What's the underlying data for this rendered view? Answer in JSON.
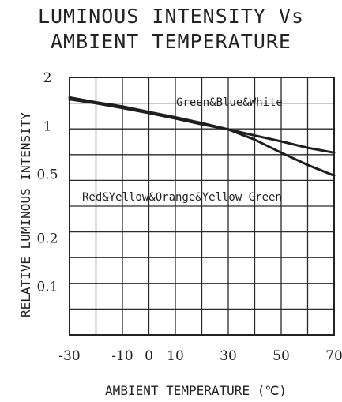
{
  "chart_data": {
    "type": "line",
    "title": [
      "LUMINOUS INTENSITY Vs",
      "AMBIENT TEMPERATURE"
    ],
    "xlabel": "AMBIENT TEMPERATURE (℃)",
    "ylabel": "RELATIVE LUMINOUS INTENSITY",
    "x_ticks": [
      -30,
      -10,
      0,
      10,
      30,
      50,
      70
    ],
    "x_tick_labels": [
      "-30",
      "-10",
      "0",
      "10",
      "30",
      "50",
      "70"
    ],
    "y_ticks": [
      2,
      1,
      0.5,
      0.2,
      0.1
    ],
    "y_tick_labels": [
      "2",
      "1",
      "0.5",
      "0.2",
      "0.1"
    ],
    "xlim": [
      -30,
      70
    ],
    "ylim": [
      0.05,
      2
    ],
    "y_scale": "log",
    "grid": true,
    "annotations": [
      "Green&Blue&White",
      "Red&Yellow&Orange&Yellow Green"
    ],
    "series": [
      {
        "x": [
          -30,
          -20,
          -10,
          0,
          10,
          20,
          30,
          40,
          50,
          60,
          70
        ],
        "y": [
          1.5,
          1.4,
          1.32,
          1.22,
          1.13,
          1.04,
          0.95,
          0.87,
          0.8,
          0.73,
          0.68
        ]
      },
      {
        "x": [
          -30,
          -20,
          -10,
          0,
          10,
          20,
          30,
          40,
          50,
          60,
          70
        ],
        "y": [
          1.46,
          1.38,
          1.29,
          1.2,
          1.11,
          1.02,
          0.95,
          0.82,
          0.68,
          0.57,
          0.49
        ]
      }
    ],
    "line_color": "#1e1e1e",
    "grid_color": "#2a2a2a"
  }
}
